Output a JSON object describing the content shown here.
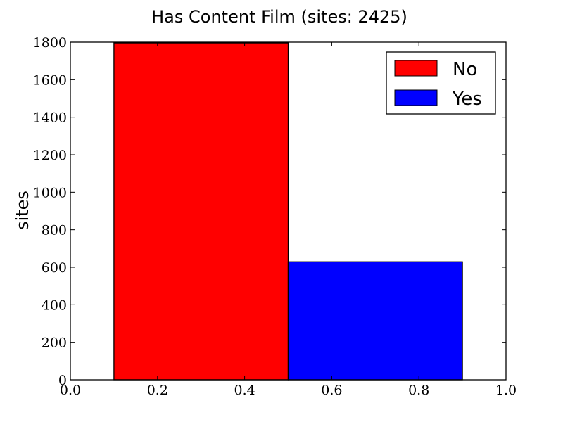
{
  "chart_data": {
    "type": "bar",
    "title": "Has Content Film (sites: 2425)",
    "xlabel": "",
    "ylabel": "sites",
    "xlim": [
      0.0,
      1.0
    ],
    "ylim": [
      0,
      1800
    ],
    "xticks": [
      "0.0",
      "0.2",
      "0.4",
      "0.6",
      "0.8",
      "1.0"
    ],
    "yticks": [
      "0",
      "200",
      "400",
      "600",
      "800",
      "1000",
      "1200",
      "1400",
      "1600",
      "1800"
    ],
    "bars": [
      {
        "name": "No",
        "x_start": 0.1,
        "x_end": 0.5,
        "value": 1796,
        "color": "#ff0000"
      },
      {
        "name": "Yes",
        "x_start": 0.5,
        "x_end": 0.9,
        "value": 629,
        "color": "#0000ff"
      }
    ],
    "legend": {
      "placement": "top-right",
      "entries": [
        "No",
        "Yes"
      ]
    },
    "grid": false
  }
}
